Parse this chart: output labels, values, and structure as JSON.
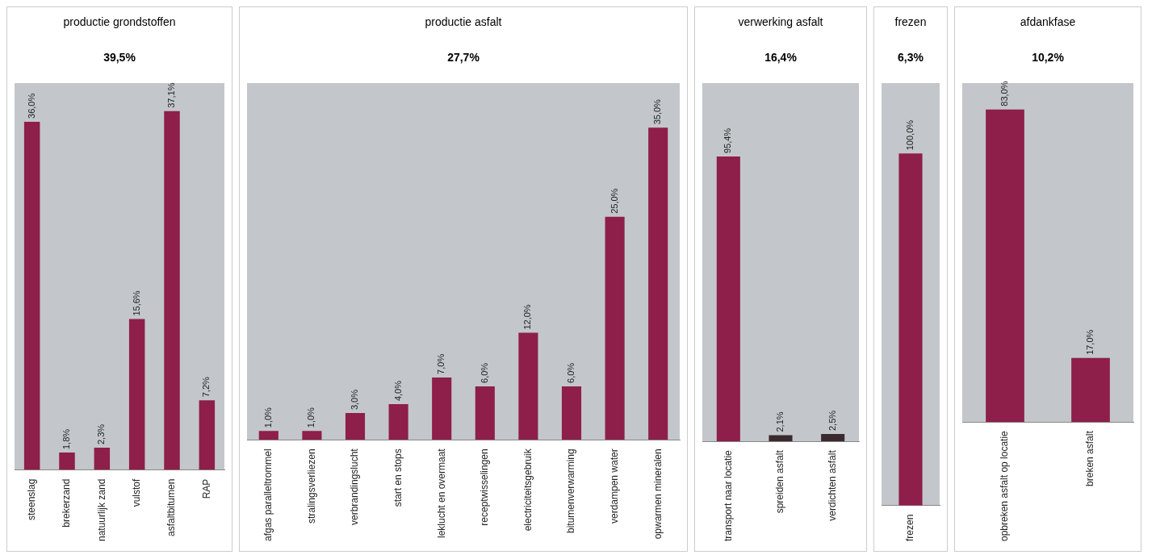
{
  "chart_data": [
    {
      "type": "bar",
      "title": "productie grondstoffen",
      "subtitle": "39,5%",
      "categories": [
        "steenslag",
        "brekerzand",
        "natuurlijk zand",
        "vulstof",
        "asfaltbitumen",
        "RAP"
      ],
      "values": [
        36.0,
        1.8,
        2.3,
        15.6,
        37.1,
        7.2
      ],
      "value_labels": [
        "36,0%",
        "1,8%",
        "2,3%",
        "15,6%",
        "37,1%",
        "7,2%"
      ],
      "color": "#8e1f4a",
      "tick_labels": "x"
    },
    {
      "type": "bar",
      "title": "productie asfalt",
      "subtitle": "27,7%",
      "categories": [
        "afgas paralleltrommel",
        "stralingsverliezen",
        "verbrandingslucht",
        "start en stops",
        "leklucht en overmaat",
        "receptwisselingen",
        "electriciteitsgebruik",
        "bitumenverwarming",
        "verdampen water",
        "opwarmen mineralen"
      ],
      "values": [
        1.0,
        1.0,
        3.0,
        4.0,
        7.0,
        6.0,
        12.0,
        6.0,
        25.0,
        35.0
      ],
      "value_labels": [
        "1,0%",
        "1,0%",
        "3,0%",
        "4,0%",
        "7,0%",
        "6,0%",
        "12,0%",
        "6,0%",
        "25,0%",
        "35,0%"
      ],
      "color": "#8e1f4a",
      "tick_labels": "x"
    },
    {
      "type": "bar",
      "title": "verwerking asfalt",
      "subtitle": "16,4%",
      "categories": [
        "transport naar locatie",
        "spreiden asfalt",
        "verdichten asfalt"
      ],
      "values": [
        95.4,
        2.1,
        2.5
      ],
      "value_labels": [
        "95,4%",
        "2,1%",
        "2,5%"
      ],
      "colors": [
        "#8e1f4a",
        "#3a2a2e",
        "#3a2a2e"
      ],
      "tick_labels": "x"
    },
    {
      "type": "bar",
      "title": "frezen",
      "subtitle": "6,3%",
      "categories": [
        "frezen"
      ],
      "values": [
        100.0
      ],
      "value_labels": [
        "100,0%"
      ],
      "color": "#8e1f4a",
      "tick_labels": "x"
    },
    {
      "type": "bar",
      "title": "afdankfase",
      "subtitle": "10,2%",
      "categories": [
        "opbreken asfalt op locatie",
        "breken asfalt"
      ],
      "values": [
        83.0,
        17.0
      ],
      "value_labels": [
        "83,0%",
        "17,0%"
      ],
      "color": "#8e1f4a",
      "tick_labels": "x"
    }
  ]
}
